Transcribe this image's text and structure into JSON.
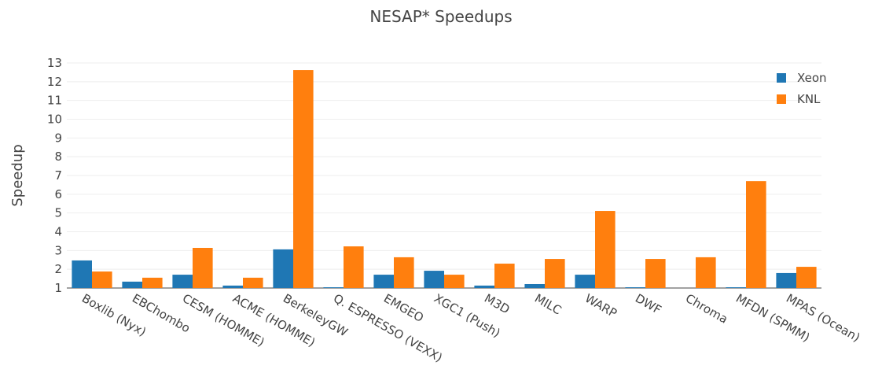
{
  "chart_data": {
    "type": "bar",
    "title": "NESAP* Speedups",
    "y_label": "Speedup",
    "categories": [
      "Boxlib (Nyx)",
      "EBChombo",
      "CESM (HOMME)",
      "ACME (HOMME)",
      "BerkeleyGW",
      "Q. ESPRESSO (VEXX)",
      "EMGEO",
      "XGC1 (Push)",
      "M3D",
      "MILC",
      "WARP",
      "DWF",
      "Chroma",
      "MFDN (SPMM)",
      "MPAS (Ocean)"
    ],
    "series": [
      {
        "name": "Xeon",
        "color": "#1f77b4",
        "values": [
          2.47,
          1.34,
          1.71,
          1.13,
          3.06,
          1.04,
          1.71,
          1.92,
          1.13,
          1.21,
          1.71,
          1.04,
          null,
          1.04,
          1.8
        ]
      },
      {
        "name": "KNL",
        "color": "#ff7f0e",
        "values": [
          1.88,
          1.55,
          3.14,
          1.55,
          12.62,
          3.22,
          2.64,
          1.71,
          2.3,
          2.55,
          5.11,
          2.55,
          2.64,
          6.7,
          2.13
        ]
      }
    ],
    "ylim": [
      1,
      13
    ],
    "yticks": [
      1,
      2,
      3,
      4,
      5,
      6,
      7,
      8,
      9,
      10,
      11,
      12,
      13
    ],
    "grid": true,
    "legend": "top-right"
  }
}
